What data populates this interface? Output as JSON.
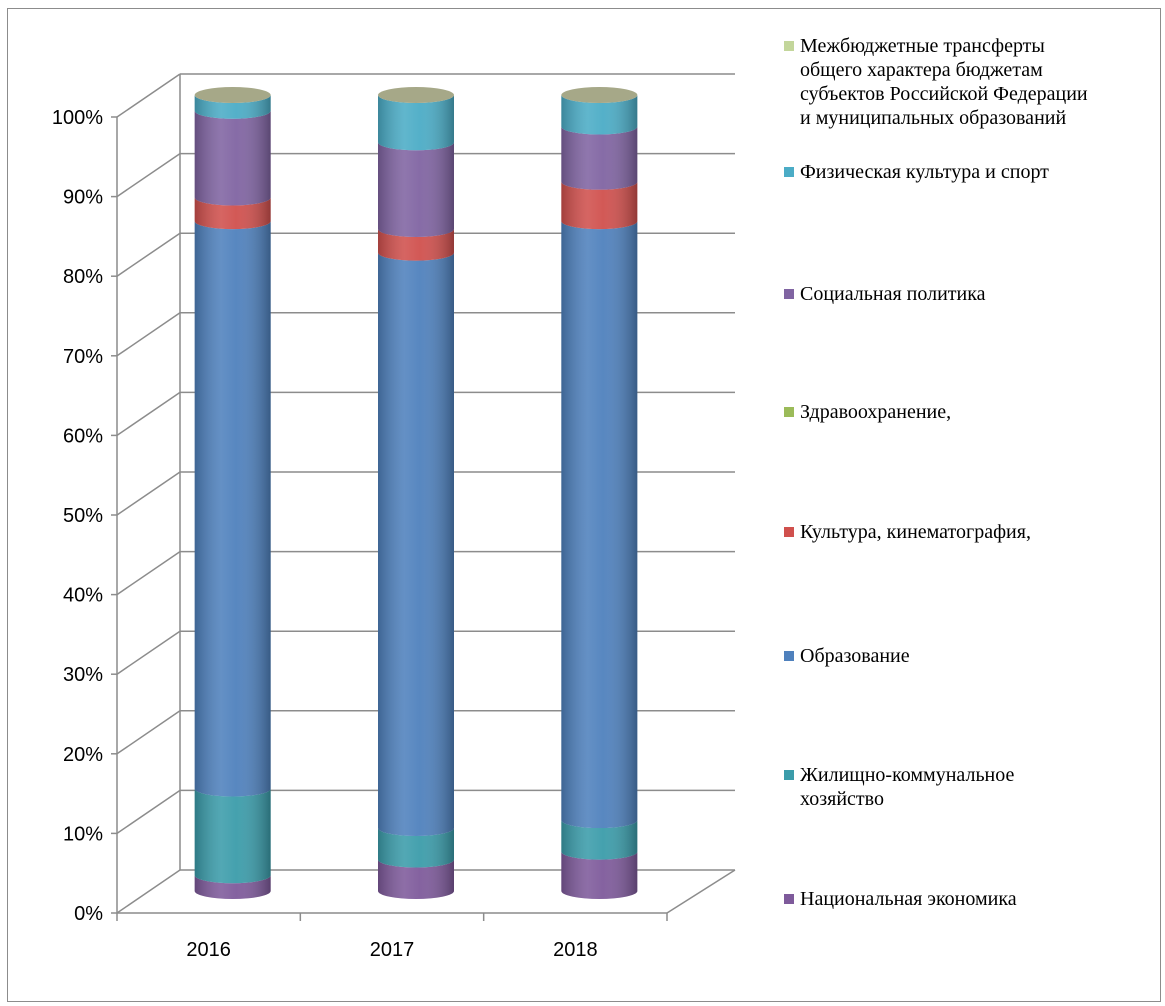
{
  "chart_data": {
    "type": "bar",
    "stacked": true,
    "normalized_percent": true,
    "categories": [
      "2016",
      "2017",
      "2018"
    ],
    "y_ticks": [
      "0%",
      "10%",
      "20%",
      "30%",
      "40%",
      "50%",
      "60%",
      "70%",
      "80%",
      "90%",
      "100%"
    ],
    "ylim": [
      0,
      100
    ],
    "grid": true,
    "legend_position": "right",
    "series": [
      {
        "name": "Национальная экономика",
        "color": "#7E5A9B",
        "values": [
          2,
          4,
          5
        ]
      },
      {
        "name": "Жилищно-коммунальное хозяйство",
        "color": "#3B9CAA",
        "values": [
          11,
          4,
          4
        ]
      },
      {
        "name": "Образование",
        "color": "#4F81BD",
        "values": [
          72,
          73,
          76
        ]
      },
      {
        "name": "Культура, кинематография,",
        "color": "#D0504D",
        "values": [
          3,
          3,
          5
        ]
      },
      {
        "name": "Здравоохранение,",
        "color": "#9BBB59",
        "values": [
          0,
          0,
          0
        ]
      },
      {
        "name": "Социальная политика",
        "color": "#8064A2",
        "values": [
          11,
          11,
          7
        ]
      },
      {
        "name": "Физическая культура и спорт",
        "color": "#4BACC6",
        "values": [
          2,
          6,
          4
        ]
      },
      {
        "name": "Межбюджетные трансферты общего характера бюджетам субъектов Российской Федерации и муниципальных образований",
        "color": "#C3D69B",
        "values": [
          0,
          0,
          0
        ]
      }
    ]
  },
  "legend": [
    {
      "label": "Межбюджетные трансферты\nобщего характера бюджетам\nсубъектов Российской Федерации\nи муниципальных образований",
      "color": "#C3D69B"
    },
    {
      "label": "Физическая культура и спорт",
      "color": "#4BACC6"
    },
    {
      "label": "Социальная политика",
      "color": "#8064A2"
    },
    {
      "label": "Здравоохранение,",
      "color": "#9BBB59"
    },
    {
      "label": "Культура, кинематография,",
      "color": "#D0504D"
    },
    {
      "label": "Образование",
      "color": "#4F81BD"
    },
    {
      "label": "Жилищно-коммунальное\nхозяйство",
      "color": "#3B9CAA"
    },
    {
      "label": "Национальная экономика",
      "color": "#7E5A9B"
    }
  ],
  "colors": {
    "gridline": "#8c8c8c",
    "axis": "#8c8c8c",
    "cap": "#A6A888"
  }
}
